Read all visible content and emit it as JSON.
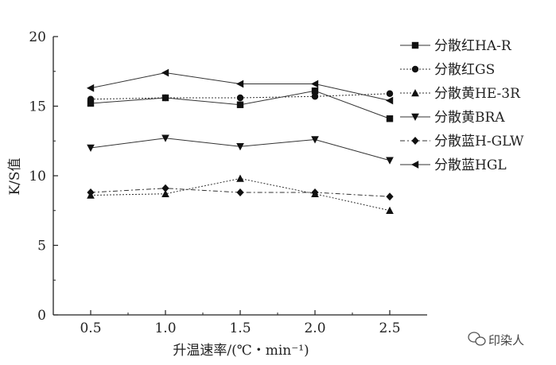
{
  "chart_data": {
    "type": "line",
    "x": [
      0.5,
      1.0,
      1.5,
      2.0,
      2.5
    ],
    "xticks": [
      "0.5",
      "1.0",
      "1.5",
      "2.0",
      "2.5"
    ],
    "yticks": [
      "0",
      "5",
      "10",
      "15",
      "20"
    ],
    "xlim": [
      0.25,
      2.75
    ],
    "ylim": [
      0,
      20
    ],
    "ylabel": "K/S值",
    "xlabel": "升温速率/(℃・min⁻¹)",
    "grid": false,
    "legend_position": "top-right",
    "series": [
      {
        "name": "分散红HA-R",
        "marker": "square",
        "dash": "solid",
        "values": [
          15.2,
          15.6,
          15.1,
          16.1,
          14.1
        ]
      },
      {
        "name": "分散红GS",
        "marker": "circle",
        "dash": "dotted",
        "values": [
          15.5,
          15.6,
          15.6,
          15.7,
          15.9
        ]
      },
      {
        "name": "分散黄HE-3R",
        "marker": "triangle-up",
        "dash": "dotted",
        "values": [
          8.6,
          8.7,
          9.8,
          8.7,
          7.5
        ]
      },
      {
        "name": "分散黄BRA",
        "marker": "triangle-down",
        "dash": "solid",
        "values": [
          12.0,
          12.7,
          12.1,
          12.6,
          11.1
        ]
      },
      {
        "name": "分散蓝H-GLW",
        "marker": "diamond",
        "dash": "dashdot",
        "values": [
          8.8,
          9.1,
          8.8,
          8.8,
          8.5
        ]
      },
      {
        "name": "分散蓝HGL",
        "marker": "triangle-left",
        "dash": "solid",
        "values": [
          16.3,
          17.4,
          16.6,
          16.6,
          15.4
        ]
      }
    ]
  },
  "watermark": {
    "text": "印染人"
  }
}
